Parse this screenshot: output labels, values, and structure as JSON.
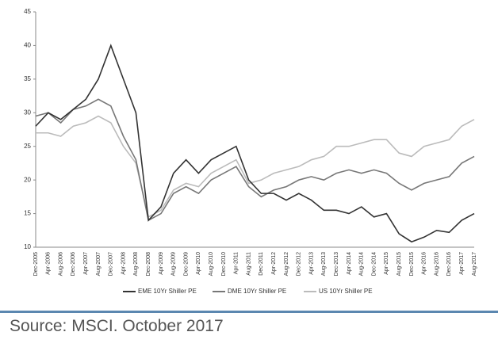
{
  "chart_data": {
    "type": "line",
    "categories": [
      "Dec-2005",
      "Apr-2006",
      "Aug-2006",
      "Dec-2006",
      "Apr-2007",
      "Aug-2007",
      "Dec-2007",
      "Apr-2008",
      "Aug-2008",
      "Dec-2008",
      "Apr-2009",
      "Aug-2009",
      "Dec-2009",
      "Apr-2010",
      "Aug-2010",
      "Dec-2010",
      "Apr-2011",
      "Aug-2011",
      "Dec-2011",
      "Apr-2012",
      "Aug-2012",
      "Dec-2012",
      "Apr-2013",
      "Aug-2013",
      "Dec-2013",
      "Apr-2014",
      "Aug-2014",
      "Dec-2014",
      "Apr-2015",
      "Aug-2015",
      "Dec-2015",
      "Apr-2016",
      "Aug-2016",
      "Dec-2016",
      "Apr-2017",
      "Aug-2017"
    ],
    "series": [
      {
        "name": "EME 10Yr Shiller PE",
        "color": "#333333",
        "values": [
          28,
          30,
          29,
          30.5,
          32,
          35,
          40,
          35,
          30,
          14,
          16,
          21,
          23,
          21,
          23,
          24,
          25,
          20,
          18,
          18,
          17,
          18,
          17,
          15.5,
          15.5,
          15,
          16,
          14.5,
          15,
          12,
          10.8,
          11.5,
          12.5,
          12.2,
          14,
          15
        ]
      },
      {
        "name": "DME 10Yr Shiller PE",
        "color": "#777777",
        "values": [
          29.5,
          30,
          28.5,
          30.5,
          31,
          32,
          31,
          26.5,
          23,
          14,
          15,
          18,
          19,
          18,
          20,
          21,
          22,
          19,
          17.5,
          18.5,
          19,
          20,
          20.5,
          20,
          21,
          21.5,
          21,
          21.5,
          21,
          19.5,
          18.5,
          19.5,
          20,
          20.5,
          22.5,
          23.5
        ]
      },
      {
        "name": "US 10Yr Shiller PE",
        "color": "#bbbbbb",
        "values": [
          27,
          27,
          26.5,
          28,
          28.5,
          29.5,
          28.5,
          25,
          22.5,
          14.5,
          15.5,
          18.5,
          19.5,
          19,
          21,
          22,
          23,
          19.5,
          20,
          21,
          21.5,
          22,
          23,
          23.5,
          25,
          25,
          25.5,
          26,
          26,
          24,
          23.5,
          25,
          25.5,
          26,
          28,
          29
        ]
      }
    ],
    "ylim": [
      10,
      45
    ],
    "yticks": [
      10,
      15,
      20,
      25,
      30,
      35,
      40,
      45
    ],
    "grid": false
  },
  "source": "Source: MSCI. October 2017"
}
